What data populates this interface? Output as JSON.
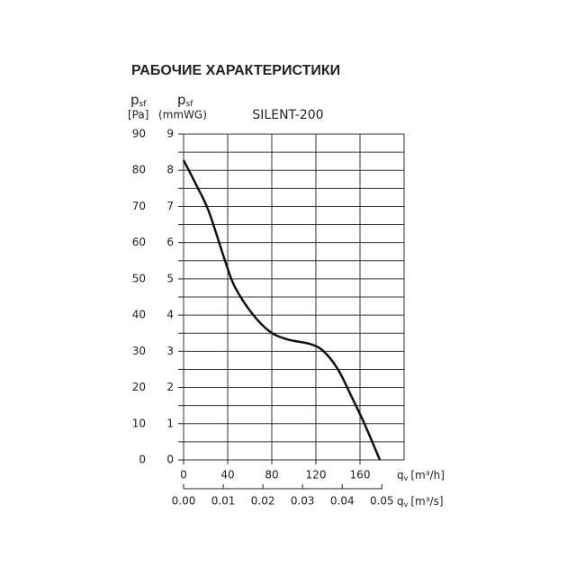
{
  "chart_data": {
    "type": "line",
    "title": "РАБОЧИЕ ХАРАКТЕРИСТИКИ",
    "subtitle": "SILENT-200",
    "y_label": {
      "symbol": "p",
      "subscript": "sf",
      "unit": "[Pa]"
    },
    "y2_label": {
      "symbol": "p",
      "subscript": "sf",
      "unit": "(mmWG)"
    },
    "x_label": {
      "symbol": "q",
      "subscript": "v",
      "unit": "[m³/h]"
    },
    "x2_label": {
      "symbol": "q",
      "subscript": "v",
      "unit": "[m³/s]"
    },
    "x": [
      0,
      11.4,
      22.9,
      39,
      47,
      62,
      78,
      94,
      115,
      127,
      140,
      152,
      164,
      178
    ],
    "values": [
      82.8,
      76,
      68.6,
      53.7,
      47.5,
      40.5,
      35.5,
      33.3,
      32,
      30,
      25,
      17.7,
      10,
      0
    ],
    "color": "#111111",
    "xlim": [
      0,
      200
    ],
    "xticks": [
      0,
      40,
      80,
      120,
      160
    ],
    "x2lim": [
      0,
      0.0556
    ],
    "x2ticks": [
      {
        "value": 0,
        "label": "0.00"
      },
      0.01,
      0.02,
      0.03,
      0.04,
      0.05
    ],
    "ylim": [
      0,
      90
    ],
    "yticks": [
      0,
      10,
      20,
      30,
      40,
      50,
      60,
      70,
      80,
      90
    ],
    "y_minor_ticks": [
      5,
      15,
      25,
      35,
      45,
      55,
      65,
      75,
      85
    ],
    "y2lim": [
      0,
      9
    ],
    "y2ticks": [
      0,
      1,
      2,
      3,
      4,
      5,
      6,
      7,
      8,
      9
    ],
    "grid": true
  }
}
